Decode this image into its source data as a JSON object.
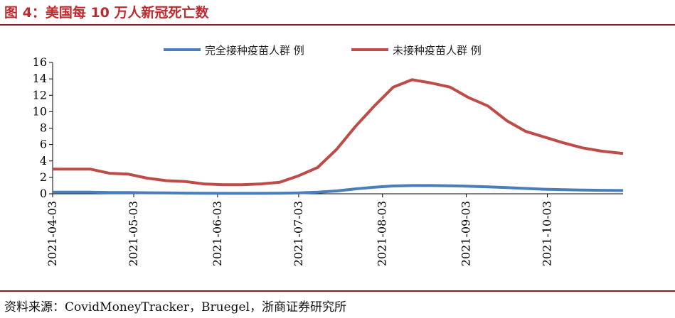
{
  "figure": {
    "title": "图 4：美国每 10 万人新冠死亡数",
    "source": "资料来源：CovidMoneyTracker，Bruegel，浙商证券研究所"
  },
  "chart_data": {
    "type": "line",
    "title": "",
    "xlabel": "",
    "ylabel": "",
    "ylim": [
      0,
      16
    ],
    "yticks": [
      0,
      2,
      4,
      6,
      8,
      10,
      12,
      14,
      16
    ],
    "xrange": [
      "2021-04-03",
      "2021-10-31"
    ],
    "xticks": [
      "2021-04-03",
      "2021-05-03",
      "2021-06-03",
      "2021-07-03",
      "2021-08-03",
      "2021-09-03",
      "2021-10-03"
    ],
    "grid": false,
    "legend": "top-center",
    "x": [
      "2021-04-03",
      "2021-04-10",
      "2021-04-17",
      "2021-04-24",
      "2021-05-01",
      "2021-05-08",
      "2021-05-15",
      "2021-05-22",
      "2021-05-29",
      "2021-06-05",
      "2021-06-12",
      "2021-06-19",
      "2021-06-26",
      "2021-07-03",
      "2021-07-10",
      "2021-07-17",
      "2021-07-24",
      "2021-07-31",
      "2021-08-07",
      "2021-08-14",
      "2021-08-21",
      "2021-08-28",
      "2021-09-04",
      "2021-09-11",
      "2021-09-18",
      "2021-09-25",
      "2021-10-02",
      "2021-10-09",
      "2021-10-16",
      "2021-10-23",
      "2021-10-31"
    ],
    "series": [
      {
        "name": "完全接种疫苗人群 例",
        "color": "#4a7ebb",
        "values": [
          0.2,
          0.2,
          0.2,
          0.15,
          0.15,
          0.12,
          0.1,
          0.08,
          0.06,
          0.05,
          0.05,
          0.05,
          0.07,
          0.1,
          0.2,
          0.35,
          0.6,
          0.8,
          0.95,
          1.0,
          1.0,
          0.98,
          0.92,
          0.85,
          0.75,
          0.65,
          0.55,
          0.5,
          0.45,
          0.42,
          0.4
        ]
      },
      {
        "name": "未接种疫苗人群 例",
        "color": "#be4b48",
        "values": [
          3.0,
          3.0,
          3.0,
          2.5,
          2.4,
          1.9,
          1.6,
          1.5,
          1.2,
          1.1,
          1.1,
          1.2,
          1.4,
          2.2,
          3.2,
          5.4,
          8.2,
          10.7,
          13.0,
          13.9,
          13.5,
          13.0,
          11.7,
          10.7,
          8.9,
          7.6,
          6.9,
          6.2,
          5.6,
          5.2,
          4.9
        ]
      }
    ]
  }
}
